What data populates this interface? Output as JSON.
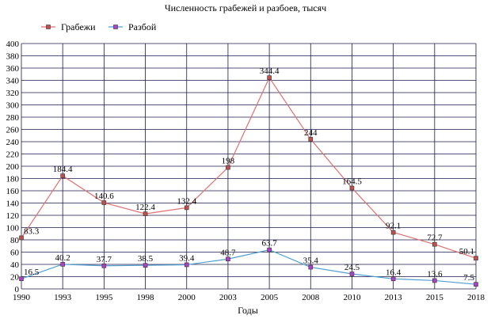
{
  "chart_data": {
    "type": "line",
    "title": "Численность грабежей и разбоев, тысяч",
    "xlabel": "Годы",
    "ylabel": "",
    "categories": [
      "1990",
      "1993",
      "1995",
      "1998",
      "2000",
      "2003",
      "2005",
      "2008",
      "2010",
      "2013",
      "2015",
      "2018"
    ],
    "ylim": [
      0,
      400
    ],
    "ytick_step": 20,
    "grid": true,
    "legend_position": "top-left",
    "series": [
      {
        "name": "Грабежи",
        "color": "#e07070",
        "marker_color": "#c0504d",
        "values": [
          83.3,
          184.4,
          140.6,
          122.4,
          132.4,
          198,
          344.4,
          244,
          164.5,
          92.1,
          72.7,
          50.1
        ],
        "labels": [
          "83.3",
          "184.4",
          "140.6",
          "122.4",
          "132.4",
          "198",
          "344.4",
          "244",
          "164.5",
          "92.1",
          "72.7",
          "50.1"
        ]
      },
      {
        "name": "Разбой",
        "color": "#4f9ed0",
        "marker_color": "#b040c8",
        "values": [
          16.5,
          40.2,
          37.7,
          38.5,
          39.4,
          48.7,
          63.7,
          35.4,
          24.5,
          16.4,
          13.6,
          7.5
        ],
        "labels": [
          "16.5",
          "40.2",
          "37.7",
          "38.5",
          "39.4",
          "48.7",
          "63.7",
          "35.4",
          "24.5",
          "16.4",
          "13.6",
          "7.5"
        ]
      }
    ]
  }
}
